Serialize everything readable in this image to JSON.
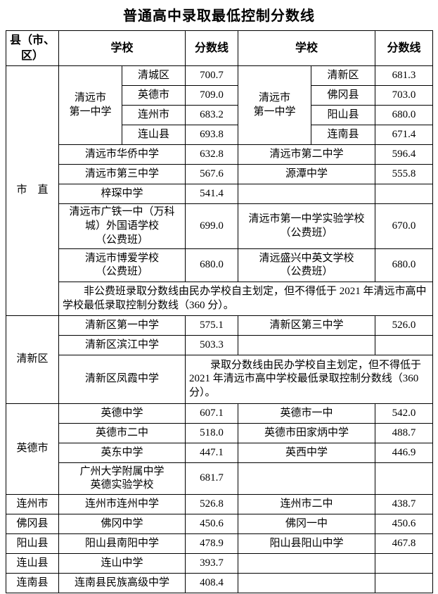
{
  "title": "普通高中录取最低控制分数线",
  "header": {
    "county": "县（市、区）",
    "school": "学校",
    "score": "分数线"
  },
  "sections": {
    "shizhi": {
      "label": "市　直",
      "school_left": "清远市\n第一中学",
      "school_right": "清远市\n第一中学",
      "left": {
        "d1": "清城区",
        "v1": "700.7",
        "d2": "英德市",
        "v2": "709.0",
        "d3": "连州市",
        "v3": "683.2",
        "d4": "连山县",
        "v4": "693.8"
      },
      "right": {
        "d1": "清新区",
        "v1": "681.3",
        "d2": "佛冈县",
        "v2": "703.0",
        "d3": "阳山县",
        "v3": "680.0",
        "d4": "连南县",
        "v4": "671.4"
      },
      "r5": {
        "s1": "清远市华侨中学",
        "v1": "632.8",
        "s2": "清远市第二中学",
        "v2": "596.4"
      },
      "r6": {
        "s1": "清远市第三中学",
        "v1": "567.6",
        "s2": "源潭中学",
        "v2": "555.8"
      },
      "r7": {
        "s1": "梓琛中学",
        "v1": "541.4"
      },
      "r8": {
        "s1": "清远市广铁一中（万科\n城）外国语学校\n（公费班）",
        "v1": "699.0",
        "s2": "清远市第一中学实验学校\n（公费班）",
        "v2": "670.0"
      },
      "r9": {
        "s1": "清远市博爱学校\n（公费班）",
        "v1": "680.0",
        "s2": "清远盛兴中英文学校\n（公费班）",
        "v2": "680.0"
      },
      "note": "非公费班录取分数线由民办学校自主划定，但不得低于 2021 年清远市高中学校最低录取控制分数线（360 分）。"
    },
    "qingxin": {
      "label": "清新区",
      "r1": {
        "s1": "清新区第一中学",
        "v1": "575.1",
        "s2": "清新区第三中学",
        "v2": "526.0"
      },
      "r2": {
        "s1": "清新区滨江中学",
        "v1": "503.3"
      },
      "r3": {
        "s1": "清新区凤霞中学",
        "note": "录取分数线由民办学校自主划定，但不得低于 2021 年清远市高中学校最低录取控制分数线（360 分）。"
      }
    },
    "yingde": {
      "label": "英德市",
      "r1": {
        "s1": "英德中学",
        "v1": "607.1",
        "s2": "英德市一中",
        "v2": "542.0"
      },
      "r2": {
        "s1": "英德市二中",
        "v1": "518.0",
        "s2": "英德市田家炳中学",
        "v2": "488.7"
      },
      "r3": {
        "s1": "英东中学",
        "v1": "447.1",
        "s2": "英西中学",
        "v2": "446.9"
      },
      "r4": {
        "s1": "广州大学附属中学\n英德实验学校",
        "v1": "681.7"
      }
    },
    "lianzhou": {
      "label": "连州市",
      "s1": "连州市连州中学",
      "v1": "526.8",
      "s2": "连州市二中",
      "v2": "438.7"
    },
    "fogang": {
      "label": "佛冈县",
      "s1": "佛冈中学",
      "v1": "450.6",
      "s2": "佛冈一中",
      "v2": "450.6"
    },
    "yangshan": {
      "label": "阳山县",
      "s1": "阳山县南阳中学",
      "v1": "478.9",
      "s2": "阳山县阳山中学",
      "v2": "467.8"
    },
    "lianshan": {
      "label": "连山县",
      "s1": "连山中学",
      "v1": "393.7"
    },
    "liannan": {
      "label": "连南县",
      "s1": "连南县民族高级中学",
      "v1": "408.4"
    }
  }
}
